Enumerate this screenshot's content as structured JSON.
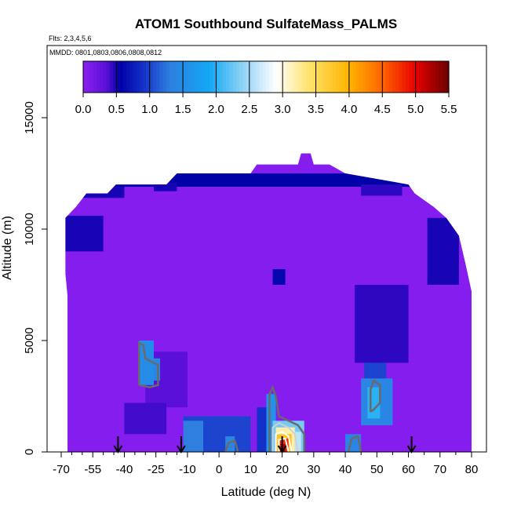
{
  "chart_data": {
    "type": "heatmap",
    "title": "ATOM1 Southbound SulfateMass_PALMS",
    "flights_text": "Flts: 2,3,4,5,6",
    "dates_text": "MMDD: 0801,0803,0806,0808,0812",
    "xlabel": "Latitude (deg N)",
    "ylabel": "Altitude (m)",
    "xlim": [
      -70,
      80
    ],
    "ylim": [
      0,
      17500
    ],
    "x_ticks": [
      -70,
      -55,
      -40,
      -25,
      -10,
      0,
      10,
      20,
      30,
      40,
      50,
      60,
      70,
      80
    ],
    "x_tick_labels": [
      "-70",
      "-55",
      "-40",
      "-25",
      "-10",
      "0",
      "10",
      "20",
      "30",
      "40",
      "50",
      "60",
      "70",
      "80"
    ],
    "y_ticks": [
      0,
      5000,
      10000,
      15000
    ],
    "y_tick_labels": [
      "0",
      "5000",
      "10000",
      "15000"
    ],
    "colorbar": {
      "min": 0,
      "max": 5.5,
      "ticks": [
        0.0,
        0.5,
        1.0,
        1.5,
        2.0,
        2.5,
        3.0,
        3.5,
        4.0,
        4.5,
        5.0,
        5.5
      ],
      "tick_labels": [
        "0.0",
        "0.5",
        "1.0",
        "1.5",
        "2.0",
        "2.5",
        "3.0",
        "3.5",
        "4.0",
        "4.5",
        "5.0",
        "5.5"
      ],
      "stops": [
        {
          "v": 0.0,
          "c": "#8b1ff0"
        },
        {
          "v": 0.35,
          "c": "#5a10d8"
        },
        {
          "v": 0.55,
          "c": "#0000a8"
        },
        {
          "v": 0.9,
          "c": "#1530c8"
        },
        {
          "v": 1.3,
          "c": "#2f7fe0"
        },
        {
          "v": 1.9,
          "c": "#12a8f5"
        },
        {
          "v": 2.4,
          "c": "#8fd2f5"
        },
        {
          "v": 2.9,
          "c": "#ffffff"
        },
        {
          "v": 3.4,
          "c": "#ffe36a"
        },
        {
          "v": 4.0,
          "c": "#ffb400"
        },
        {
          "v": 4.5,
          "c": "#ff6400"
        },
        {
          "v": 5.0,
          "c": "#e80000"
        },
        {
          "v": 5.5,
          "c": "#6a0000"
        }
      ]
    },
    "background_value": 0.05,
    "envelope": [
      [
        -68,
        10500
      ],
      [
        -63,
        11000
      ],
      [
        -58,
        11600
      ],
      [
        -48,
        11600
      ],
      [
        -44,
        12000
      ],
      [
        -35,
        12000
      ],
      [
        -20,
        12000
      ],
      [
        -15,
        12500
      ],
      [
        0,
        12500
      ],
      [
        10,
        12500
      ],
      [
        12,
        12900
      ],
      [
        25,
        12900
      ],
      [
        26,
        13400
      ],
      [
        29,
        13400
      ],
      [
        30,
        12900
      ],
      [
        35,
        12900
      ],
      [
        40,
        12500
      ],
      [
        60,
        12000
      ],
      [
        62,
        11600
      ],
      [
        68,
        11000
      ],
      [
        72,
        10500
      ],
      [
        76,
        9700
      ],
      [
        78,
        8500
      ],
      [
        80,
        7200
      ],
      [
        80,
        0
      ],
      [
        -67,
        0
      ],
      [
        -67,
        7000
      ],
      [
        -68,
        8000
      ],
      [
        -68,
        10500
      ]
    ],
    "features": [
      {
        "lat": [
          -68,
          78
        ],
        "alt": [
          11900,
          12500
        ],
        "value": 0.55
      },
      {
        "lat": [
          -68,
          -50
        ],
        "alt": [
          9000,
          10600
        ],
        "value": 0.5
      },
      {
        "lat": [
          -60,
          -40
        ],
        "alt": [
          11400,
          11900
        ],
        "value": 0.5
      },
      {
        "lat": [
          -26,
          -15
        ],
        "alt": [
          11700,
          12100
        ],
        "value": 0.5
      },
      {
        "lat": [
          45,
          58
        ],
        "alt": [
          11500,
          12000
        ],
        "value": 0.45
      },
      {
        "lat": [
          66,
          76
        ],
        "alt": [
          7500,
          10500
        ],
        "value": 0.5
      },
      {
        "lat": [
          17,
          21
        ],
        "alt": [
          7500,
          8200
        ],
        "value": 0.6
      },
      {
        "lat": [
          43,
          60
        ],
        "alt": [
          4000,
          7500
        ],
        "value": 0.45
      },
      {
        "lat": [
          -30,
          -10
        ],
        "alt": [
          2000,
          4500
        ],
        "value": 0.35
      },
      {
        "lat": [
          -33,
          -26
        ],
        "alt": [
          3000,
          5000
        ],
        "value": 1.5
      },
      {
        "lat": [
          -26,
          -23
        ],
        "alt": [
          3200,
          4200
        ],
        "value": 1.4
      },
      {
        "lat": [
          -40,
          -20
        ],
        "alt": [
          800,
          2200
        ],
        "value": 0.4
      },
      {
        "lat": [
          -12,
          10
        ],
        "alt": [
          0,
          1600
        ],
        "value": 1.0
      },
      {
        "lat": [
          -12,
          -5
        ],
        "alt": [
          0,
          1400
        ],
        "value": 1.3
      },
      {
        "lat": [
          2,
          5
        ],
        "alt": [
          0,
          700
        ],
        "value": 1.4
      },
      {
        "lat": [
          12,
          16
        ],
        "alt": [
          0,
          2000
        ],
        "value": 0.9
      },
      {
        "lat": [
          15,
          18
        ],
        "alt": [
          0,
          2600
        ],
        "value": 1.6
      },
      {
        "lat": [
          17,
          27
        ],
        "alt": [
          0,
          1400
        ],
        "value": 2.3
      },
      {
        "lat": [
          18,
          24
        ],
        "alt": [
          0,
          1100
        ],
        "value": 3.2
      },
      {
        "lat": [
          18,
          23
        ],
        "alt": [
          0,
          800
        ],
        "value": 3.8
      },
      {
        "lat": [
          19,
          22
        ],
        "alt": [
          0,
          600
        ],
        "value": 4.8
      },
      {
        "lat": [
          19.5,
          21
        ],
        "alt": [
          0,
          350
        ],
        "value": 5.2
      },
      {
        "lat": [
          24,
          26
        ],
        "alt": [
          0,
          900
        ],
        "value": 2.6
      },
      {
        "lat": [
          40,
          45
        ],
        "alt": [
          0,
          800
        ],
        "value": 1.4
      },
      {
        "lat": [
          45,
          55
        ],
        "alt": [
          1200,
          3300
        ],
        "value": 1.4
      },
      {
        "lat": [
          47,
          51
        ],
        "alt": [
          1500,
          2900
        ],
        "value": 2.0
      },
      {
        "lat": [
          46,
          53
        ],
        "alt": [
          3300,
          4000
        ],
        "value": 1.0
      }
    ],
    "contours": [
      {
        "level": 1.5,
        "points": [
          [
            -33,
            3000
          ],
          [
            -33,
            4900
          ],
          [
            -31,
            4800
          ],
          [
            -30,
            4200
          ],
          [
            -26,
            4000
          ],
          [
            -24,
            3900
          ],
          [
            -24,
            3000
          ],
          [
            -28,
            2900
          ],
          [
            -33,
            3000
          ]
        ]
      },
      {
        "level": 1.5,
        "points": [
          [
            48,
            1800
          ],
          [
            48,
            2800
          ],
          [
            49,
            3200
          ],
          [
            51,
            3000
          ],
          [
            51,
            2200
          ],
          [
            49,
            1900
          ],
          [
            48,
            1800
          ]
        ]
      },
      {
        "level": 1.5,
        "points": [
          [
            16,
            0
          ],
          [
            16,
            2600
          ],
          [
            17,
            2900
          ],
          [
            18,
            2500
          ],
          [
            19,
            1600
          ],
          [
            22,
            1400
          ],
          [
            25,
            1200
          ],
          [
            27,
            800
          ],
          [
            27,
            0
          ]
        ]
      },
      {
        "level": 2.5,
        "points": [
          [
            17,
            0
          ],
          [
            17,
            1100
          ],
          [
            19,
            1300
          ],
          [
            22,
            1100
          ],
          [
            24,
            800
          ],
          [
            25,
            0
          ]
        ]
      },
      {
        "level": 3.5,
        "points": [
          [
            18,
            0
          ],
          [
            18,
            800
          ],
          [
            20,
            900
          ],
          [
            22,
            700
          ],
          [
            23,
            0
          ]
        ]
      },
      {
        "level": 4.5,
        "points": [
          [
            19,
            0
          ],
          [
            19,
            550
          ],
          [
            21,
            600
          ],
          [
            22,
            0
          ]
        ]
      },
      {
        "level": 1.0,
        "points": [
          [
            2,
            0
          ],
          [
            3,
            400
          ],
          [
            5,
            500
          ],
          [
            6,
            0
          ]
        ]
      },
      {
        "level": 1.0,
        "points": [
          [
            41,
            0
          ],
          [
            42,
            600
          ],
          [
            44,
            700
          ],
          [
            45,
            0
          ]
        ]
      }
    ],
    "flight_arrows": [
      -43,
      -13,
      20,
      61
    ]
  }
}
